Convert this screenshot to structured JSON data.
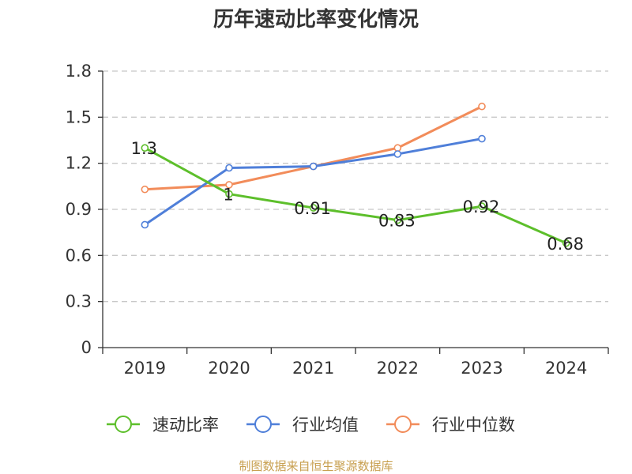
{
  "chart_data": {
    "type": "line",
    "title": "历年速动比率变化情况",
    "categories": [
      "2019",
      "2020",
      "2021",
      "2022",
      "2023",
      "2024"
    ],
    "ylim": [
      0,
      1.8
    ],
    "yticks": [
      0,
      0.3,
      0.6,
      0.9,
      1.2,
      1.5,
      1.8
    ],
    "ytick_labels": [
      "0",
      "0.3",
      "0.6",
      "0.9",
      "1.2",
      "1.5",
      "1.8"
    ],
    "grid": true,
    "legend_position": "bottom",
    "series": [
      {
        "name": "速动比率",
        "color": "#5dbf2b",
        "values": [
          1.3,
          1.0,
          0.91,
          0.83,
          0.92,
          0.68
        ],
        "labels": [
          "1.3",
          "1",
          "0.91",
          "0.83",
          "0.92",
          "0.68"
        ]
      },
      {
        "name": "行业均值",
        "color": "#4f7fd9",
        "values": [
          0.8,
          1.17,
          1.18,
          1.26,
          1.36,
          null
        ]
      },
      {
        "name": "行业中位数",
        "color": "#f28c5a",
        "values": [
          1.03,
          1.06,
          1.18,
          1.3,
          1.57,
          null
        ]
      }
    ],
    "source": "制图数据来自恒生聚源数据库"
  }
}
